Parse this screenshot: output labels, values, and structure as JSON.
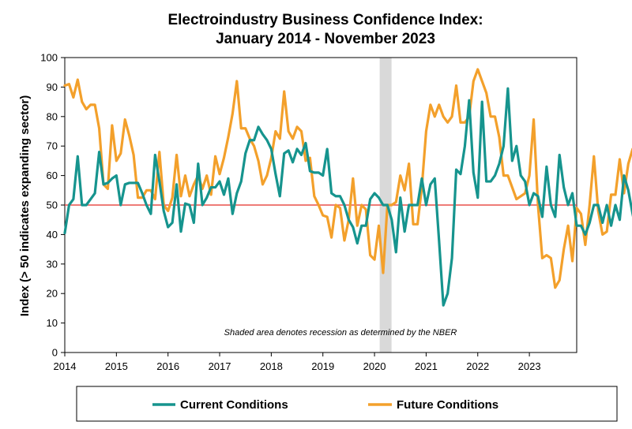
{
  "chart_data": {
    "type": "line",
    "title": [
      "Electroindustry Business Confidence Index:",
      "January 2014 - November 2023"
    ],
    "ylabel": "Index (> 50 indicates expanding sector)",
    "xlabel": "",
    "ylim": [
      0,
      100
    ],
    "yticks": [
      0,
      10,
      20,
      30,
      40,
      50,
      60,
      70,
      80,
      90,
      100
    ],
    "xlim": [
      2014.0,
      2023.9167
    ],
    "xticks": [
      "2014",
      "2015",
      "2016",
      "2017",
      "2018",
      "2019",
      "2020",
      "2021",
      "2022",
      "2023"
    ],
    "reference_line": 50,
    "recession": [
      2020.1,
      2020.33
    ],
    "annotation": "Shaded area denotes recession as determined by the NBER",
    "colors": {
      "current": "#16948e",
      "future": "#f3a02b",
      "reference": "#e8514c",
      "recession": "#d9d9d9"
    },
    "series": [
      {
        "name": "Current Conditions",
        "values": [
          40.5,
          50,
          52,
          66.5,
          50,
          50,
          52,
          54,
          68,
          57,
          57.5,
          59,
          60,
          50,
          57,
          57.5,
          57.5,
          57.5,
          54,
          50,
          47,
          67,
          58,
          48,
          42.5,
          44,
          57,
          41,
          50.5,
          50,
          44,
          64,
          50,
          52.5,
          56,
          56,
          58,
          53.5,
          59,
          47,
          54,
          58,
          67.5,
          72,
          72,
          76.5,
          74,
          72,
          69,
          60.5,
          53,
          67.5,
          68.5,
          64.5,
          69,
          67,
          71,
          61.5,
          61,
          61,
          60,
          69,
          54,
          53,
          53,
          50,
          45,
          42.5,
          37,
          43,
          43,
          52,
          54,
          52.5,
          50,
          50,
          45,
          34,
          52.5,
          41,
          50,
          50,
          50,
          59,
          50,
          57,
          59,
          38,
          16,
          20,
          32,
          62,
          60.5,
          70,
          85.5,
          61,
          52.5,
          85,
          58,
          58,
          60,
          64,
          70,
          89.5,
          65,
          70,
          60,
          58,
          50,
          54,
          53,
          46,
          63,
          50,
          46,
          67,
          56,
          50,
          54,
          43,
          43,
          40,
          44,
          50,
          50,
          44,
          50,
          43,
          50,
          45,
          60,
          55,
          47,
          40,
          42,
          50,
          43,
          50,
          50,
          53,
          53
        ]
      },
      {
        "name": "Future Conditions",
        "values": [
          90.5,
          91,
          86.5,
          92.5,
          85,
          82.5,
          84,
          84,
          76,
          57,
          55.5,
          77,
          65,
          67.5,
          79,
          73.5,
          67,
          52.5,
          52.5,
          55,
          55,
          52,
          68,
          50,
          48,
          52.5,
          67,
          53,
          60,
          53,
          57,
          60,
          55.5,
          60,
          53.5,
          66.5,
          60.5,
          66,
          73,
          81,
          92,
          76,
          76,
          72.5,
          70,
          65,
          57,
          60,
          66,
          75,
          72.5,
          88.5,
          75,
          72.5,
          76.5,
          75,
          65,
          66,
          53,
          50,
          46.5,
          46,
          39,
          50,
          49,
          38,
          45,
          59,
          43,
          50,
          48.5,
          33,
          31.5,
          43,
          27,
          50,
          50,
          51,
          60,
          55,
          64,
          43.5,
          43.5,
          56,
          75,
          84,
          80,
          84,
          80,
          78,
          80,
          90.5,
          78,
          78,
          80,
          92,
          96,
          92,
          88,
          80,
          80,
          73,
          60,
          60,
          56,
          52,
          53,
          54,
          60,
          79,
          50,
          32,
          33,
          32,
          22,
          24.5,
          35,
          43,
          31,
          49,
          47,
          36.5,
          50,
          66.5,
          48,
          40,
          41,
          53.5,
          53.5,
          65.5,
          54,
          64,
          69
        ]
      }
    ],
    "legend": [
      "Current Conditions",
      "Future Conditions"
    ]
  }
}
